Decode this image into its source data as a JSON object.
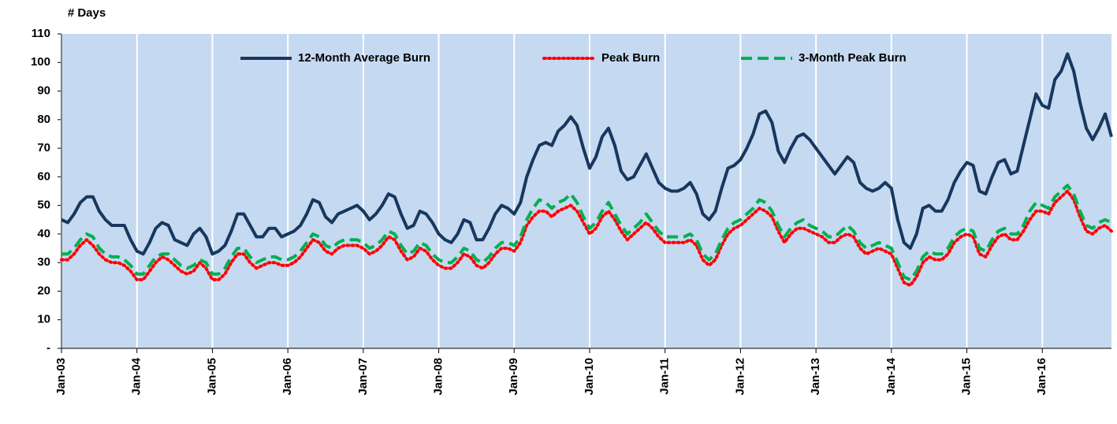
{
  "chart_data": {
    "type": "line",
    "y_label": "# Days",
    "categories": [
      "Jan-03",
      null,
      null,
      null,
      null,
      null,
      null,
      null,
      null,
      null,
      null,
      null,
      "Jan-04",
      null,
      null,
      null,
      null,
      null,
      null,
      null,
      null,
      null,
      null,
      null,
      "Jan-05",
      null,
      null,
      null,
      null,
      null,
      null,
      null,
      null,
      null,
      null,
      null,
      "Jan-06",
      null,
      null,
      null,
      null,
      null,
      null,
      null,
      null,
      null,
      null,
      null,
      "Jan-07",
      null,
      null,
      null,
      null,
      null,
      null,
      null,
      null,
      null,
      null,
      null,
      "Jan-08",
      null,
      null,
      null,
      null,
      null,
      null,
      null,
      null,
      null,
      null,
      null,
      "Jan-09",
      null,
      null,
      null,
      null,
      null,
      null,
      null,
      null,
      null,
      null,
      null,
      "Jan-10",
      null,
      null,
      null,
      null,
      null,
      null,
      null,
      null,
      null,
      null,
      null,
      "Jan-11",
      null,
      null,
      null,
      null,
      null,
      null,
      null,
      null,
      null,
      null,
      null,
      "Jan-12",
      null,
      null,
      null,
      null,
      null,
      null,
      null,
      null,
      null,
      null,
      null,
      "Jan-13",
      null,
      null,
      null,
      null,
      null,
      null,
      null,
      null,
      null,
      null,
      null,
      "Jan-14",
      null,
      null,
      null,
      null,
      null,
      null,
      null,
      null,
      null,
      null,
      null,
      "Jan-15",
      null,
      null,
      null,
      null,
      null,
      null,
      null,
      null,
      null,
      null,
      null,
      "Jan-16",
      null,
      null,
      null,
      null,
      null,
      null,
      null,
      null,
      null,
      null,
      null
    ],
    "series": [
      {
        "name": "12-Month Average Burn",
        "color": "#17375e",
        "style": "solid",
        "values": [
          45,
          44,
          47,
          51,
          53,
          53,
          48,
          45,
          43,
          43,
          43,
          38,
          34,
          33,
          37,
          42,
          44,
          43,
          38,
          37,
          36,
          40,
          42,
          39,
          33,
          34,
          36,
          41,
          47,
          47,
          43,
          39,
          39,
          42,
          42,
          39,
          40,
          41,
          43,
          47,
          52,
          51,
          46,
          44,
          47,
          48,
          49,
          50,
          48,
          45,
          47,
          50,
          54,
          53,
          47,
          42,
          43,
          48,
          47,
          44,
          40,
          38,
          37,
          40,
          45,
          44,
          38,
          38,
          42,
          47,
          50,
          49,
          47,
          51,
          60,
          66,
          71,
          72,
          71,
          76,
          78,
          81,
          78,
          70,
          63,
          67,
          74,
          77,
          71,
          62,
          59,
          60,
          64,
          68,
          63,
          58,
          56,
          55,
          55,
          56,
          58,
          54,
          47,
          45,
          48,
          56,
          63,
          64,
          66,
          70,
          75,
          82,
          83,
          79,
          69,
          65,
          70,
          74,
          75,
          73,
          70,
          67,
          64,
          61,
          64,
          67,
          65,
          58,
          56,
          55,
          56,
          58,
          56,
          45,
          37,
          35,
          40,
          49,
          50,
          48,
          48,
          52,
          58,
          62,
          65,
          64,
          55,
          54,
          60,
          65,
          66,
          61,
          62,
          71,
          80,
          89,
          85,
          84,
          94,
          97,
          103,
          97,
          86,
          77,
          73,
          77,
          82,
          74
        ]
      },
      {
        "name": "Peak Burn",
        "color": "#ff0000",
        "style": "dotted",
        "values": [
          31,
          31,
          33,
          36,
          38,
          36,
          33,
          31,
          30,
          30,
          29,
          27,
          24,
          24,
          27,
          30,
          32,
          31,
          29,
          27,
          26,
          27,
          30,
          28,
          24,
          24,
          26,
          30,
          33,
          33,
          30,
          28,
          29,
          30,
          30,
          29,
          29,
          30,
          32,
          35,
          38,
          37,
          34,
          33,
          35,
          36,
          36,
          36,
          35,
          33,
          34,
          36,
          39,
          38,
          34,
          31,
          32,
          35,
          34,
          31,
          29,
          28,
          28,
          30,
          33,
          32,
          29,
          28,
          30,
          33,
          35,
          35,
          34,
          37,
          43,
          46,
          48,
          48,
          46,
          48,
          49,
          50,
          48,
          44,
          40,
          42,
          46,
          48,
          45,
          41,
          38,
          40,
          42,
          44,
          42,
          39,
          37,
          37,
          37,
          37,
          38,
          36,
          31,
          29,
          31,
          36,
          40,
          42,
          43,
          45,
          47,
          49,
          48,
          46,
          41,
          37,
          40,
          42,
          42,
          41,
          40,
          39,
          37,
          37,
          39,
          40,
          39,
          35,
          33,
          34,
          35,
          34,
          33,
          28,
          23,
          22,
          25,
          30,
          32,
          31,
          31,
          33,
          37,
          39,
          40,
          39,
          33,
          32,
          36,
          39,
          40,
          38,
          38,
          41,
          45,
          48,
          48,
          47,
          51,
          53,
          55,
          52,
          46,
          41,
          40,
          42,
          43,
          41
        ]
      },
      {
        "name": "3-Month Peak Burn",
        "color": "#00b050",
        "style": "dashed",
        "values": [
          33,
          33,
          35,
          38,
          40,
          39,
          35,
          33,
          32,
          32,
          31,
          29,
          26,
          26,
          29,
          32,
          33,
          33,
          31,
          29,
          28,
          29,
          31,
          30,
          26,
          26,
          28,
          32,
          35,
          35,
          32,
          30,
          31,
          32,
          32,
          31,
          31,
          32,
          34,
          37,
          40,
          39,
          36,
          35,
          37,
          38,
          38,
          38,
          37,
          35,
          36,
          38,
          41,
          40,
          36,
          33,
          34,
          37,
          36,
          33,
          31,
          30,
          30,
          32,
          35,
          34,
          31,
          30,
          32,
          35,
          37,
          37,
          36,
          39,
          45,
          49,
          52,
          51,
          49,
          51,
          52,
          54,
          51,
          46,
          42,
          44,
          48,
          51,
          47,
          43,
          40,
          42,
          44,
          47,
          44,
          41,
          39,
          39,
          39,
          39,
          40,
          38,
          33,
          31,
          33,
          38,
          42,
          44,
          45,
          47,
          49,
          52,
          51,
          48,
          43,
          39,
          42,
          44,
          45,
          43,
          42,
          41,
          39,
          39,
          41,
          43,
          41,
          37,
          35,
          36,
          37,
          36,
          35,
          30,
          25,
          24,
          27,
          32,
          34,
          33,
          33,
          35,
          39,
          41,
          42,
          41,
          35,
          34,
          38,
          41,
          42,
          40,
          40,
          43,
          48,
          51,
          50,
          49,
          53,
          55,
          57,
          54,
          48,
          43,
          42,
          44,
          45,
          44
        ]
      }
    ],
    "ylim": [
      0,
      110
    ],
    "yticks": [
      {
        "value": 0,
        "label": "-"
      },
      10,
      20,
      30,
      40,
      50,
      60,
      70,
      80,
      90,
      100,
      110
    ],
    "grid": "x",
    "legend": "top",
    "plot_background": "#c5d9f1"
  }
}
